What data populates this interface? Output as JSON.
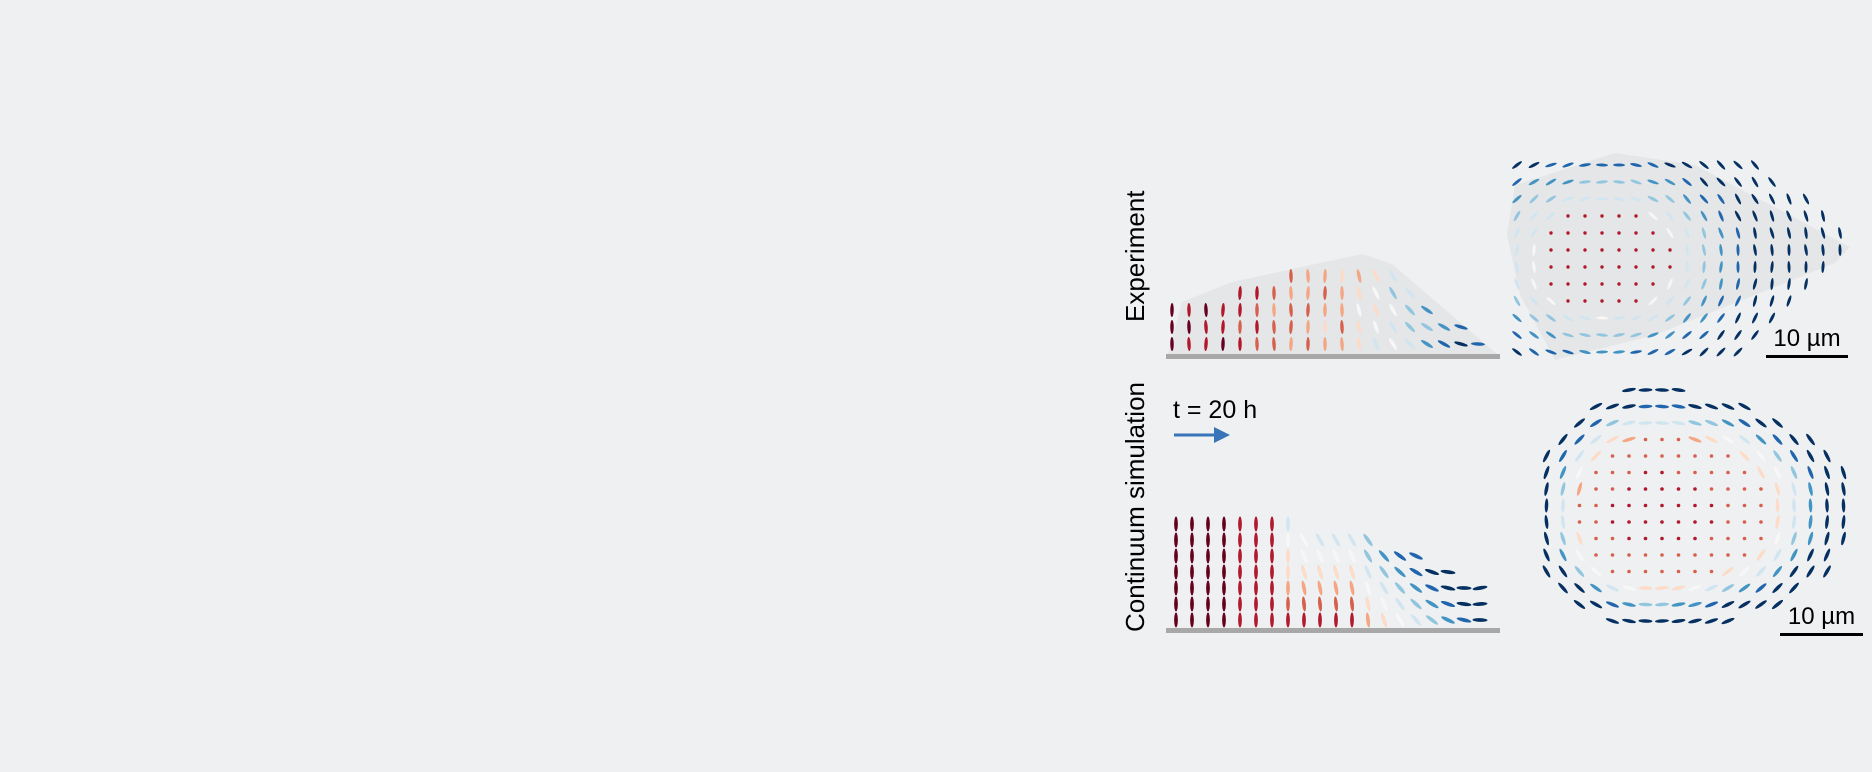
{
  "rows": {
    "experiment": "Experiment",
    "simulation": "Continuum simulation"
  },
  "scale_bar_label": "10 µm",
  "time_label": "t = 20 h",
  "colors": {
    "background": "#eef0f2",
    "cell_outline_fill": "#e4e6e8",
    "substrate": "#a8a8a8",
    "arrow": "#3a74b8",
    "diverging_scale": [
      "#67001f",
      "#b2182b",
      "#d6604d",
      "#f4a582",
      "#fddbc7",
      "#f7f7f7",
      "#d1e5f0",
      "#92c5de",
      "#4393c3",
      "#2166ac",
      "#053061"
    ]
  },
  "icons": {
    "flow_arrow": "arrow-right-icon"
  }
}
